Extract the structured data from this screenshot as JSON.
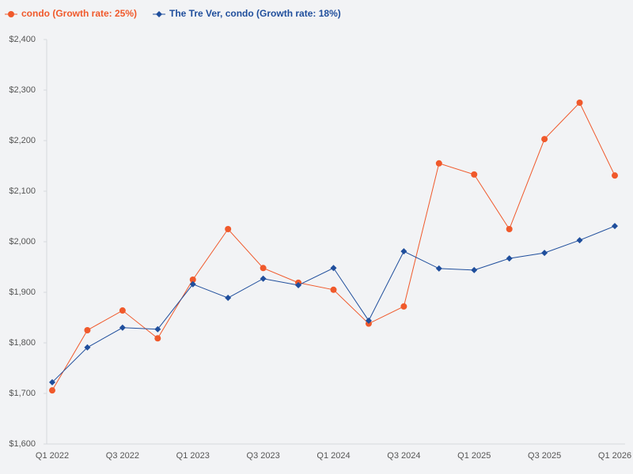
{
  "chart_data": {
    "type": "line",
    "categories": [
      "Q1 2022",
      null,
      "Q3 2022",
      null,
      "Q1 2023",
      null,
      "Q3 2023",
      null,
      "Q1 2024",
      null,
      "Q3 2024",
      null,
      "Q1 2025",
      null,
      "Q3 2025",
      null,
      "Q1 2026"
    ],
    "series": [
      {
        "name": "condo (Growth rate: 25%)",
        "color": "#f0592b",
        "marker": "circle",
        "values": [
          1706,
          1825,
          1864,
          1809,
          1925,
          2025,
          1948,
          1919,
          1905,
          1838,
          1872,
          2155,
          2133,
          2025,
          2203,
          2275,
          2131
        ]
      },
      {
        "name": "The Tre Ver, condo (Growth rate: 18%)",
        "color": "#1f4e9c",
        "marker": "diamond",
        "values": [
          1722,
          1791,
          1830,
          1827,
          1916,
          1889,
          1927,
          1914,
          1948,
          1844,
          1981,
          1947,
          1944,
          1967,
          1978,
          2003,
          2031
        ]
      }
    ],
    "ylim": [
      1600,
      2400
    ],
    "yticks": [
      {
        "value": 1600,
        "label": "$1,600"
      },
      {
        "value": 1700,
        "label": "$1,700"
      },
      {
        "value": 1800,
        "label": "$1,800"
      },
      {
        "value": 1900,
        "label": "$1,900"
      },
      {
        "value": 2000,
        "label": "$2,000"
      },
      {
        "value": 2100,
        "label": "$2,100"
      },
      {
        "value": 2200,
        "label": "$2,200"
      },
      {
        "value": 2300,
        "label": "$2,300"
      },
      {
        "value": 2400,
        "label": "$2,400"
      }
    ],
    "grid": false,
    "legend": "top-left"
  }
}
